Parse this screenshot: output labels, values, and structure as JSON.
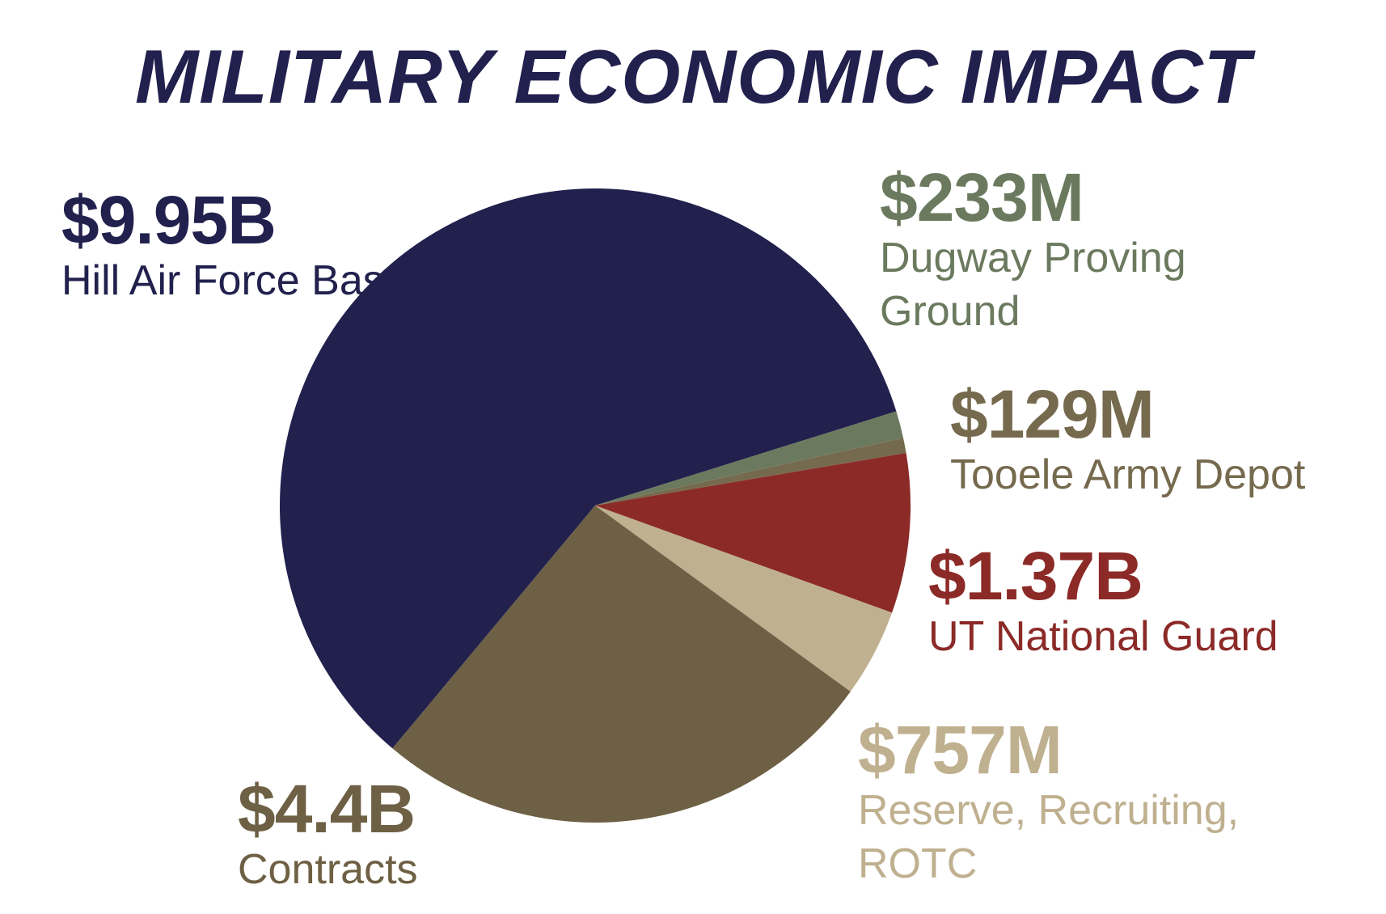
{
  "title": "MILITARY ECONOMIC IMPACT",
  "colors": {
    "title": "#22204d"
  },
  "chart_data": {
    "type": "pie",
    "title": "MILITARY ECONOMIC IMPACT",
    "unit": "USD billions",
    "start_angle_deg": 230,
    "direction": "clockwise",
    "slices": [
      {
        "value_label": "$9.95B",
        "name": "Hill Air Force Base",
        "value": 9.95,
        "color": "#22204d"
      },
      {
        "value_label": "$233M",
        "name": "Dugway Proving Ground",
        "value": 0.233,
        "color": "#6b7a5e"
      },
      {
        "value_label": "$129M",
        "name": "Tooele Army Depot",
        "value": 0.129,
        "color": "#766a4e"
      },
      {
        "value_label": "$1.37B",
        "name": "UT National Guard",
        "value": 1.37,
        "color": "#8b2a27"
      },
      {
        "value_label": "$757M",
        "name": "Reserve, Recruiting, ROTC",
        "value": 0.757,
        "color": "#bfb08f"
      },
      {
        "value_label": "$4.4B",
        "name": "Contracts",
        "value": 4.4,
        "color": "#6e6044"
      }
    ]
  }
}
